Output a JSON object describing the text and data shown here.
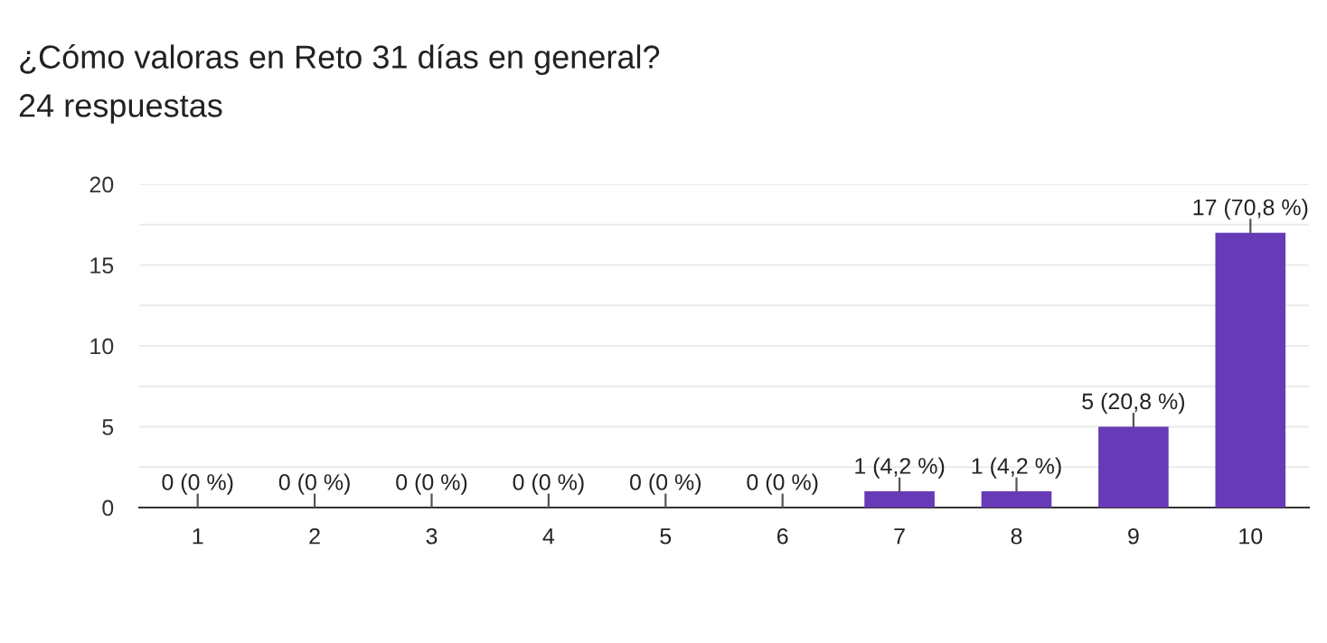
{
  "chart_data": {
    "type": "bar",
    "title": "¿Cómo valoras en Reto 31 días en general?",
    "subtitle": "24 respuestas",
    "categories": [
      "1",
      "2",
      "3",
      "4",
      "5",
      "6",
      "7",
      "8",
      "9",
      "10"
    ],
    "values": [
      0,
      0,
      0,
      0,
      0,
      0,
      1,
      1,
      5,
      17
    ],
    "value_labels": [
      "0 (0 %)",
      "0 (0 %)",
      "0 (0 %)",
      "0 (0 %)",
      "0 (0 %)",
      "0 (0 %)",
      "1 (4,2 %)",
      "1 (4,2 %)",
      "5 (20,8 %)",
      "17 (70,8 %)"
    ],
    "color": "#673ab7",
    "ylim": [
      0,
      20
    ],
    "yticks": [
      0,
      {
        "value": 2.5,
        "label": null
      },
      5,
      {
        "value": 7.5,
        "label": null
      },
      10,
      {
        "value": 12.5,
        "label": null
      },
      15,
      {
        "value": 17.5,
        "label": null
      },
      20
    ],
    "grid": "y"
  }
}
